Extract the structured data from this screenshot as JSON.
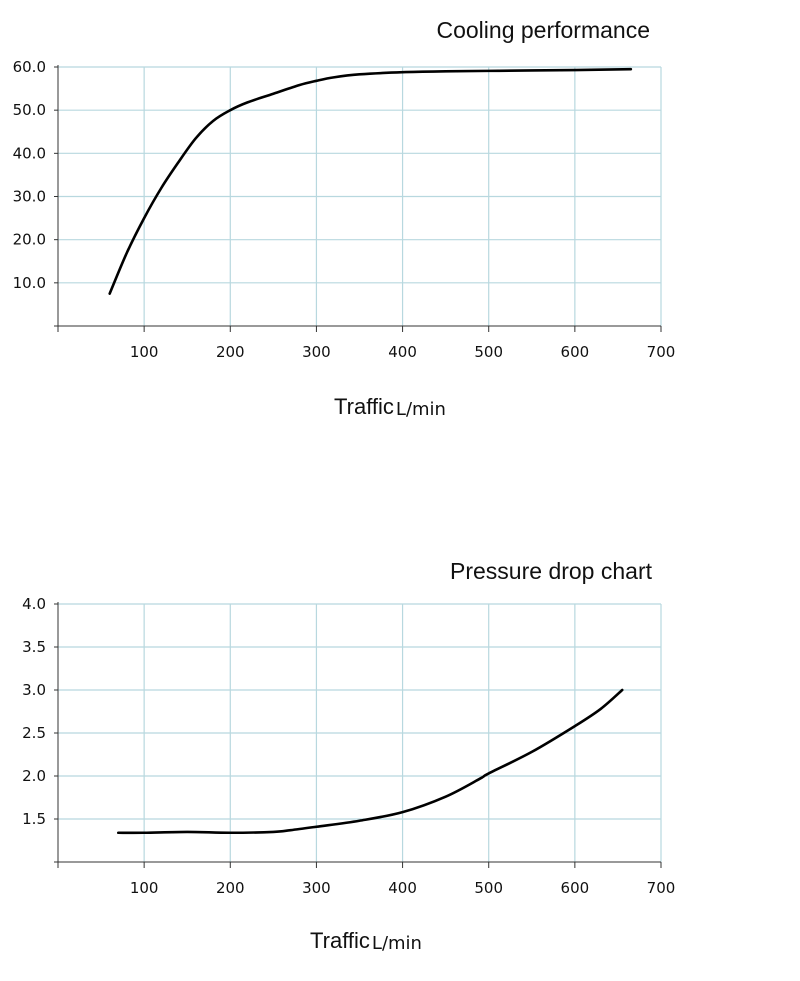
{
  "chart_data": [
    {
      "type": "line",
      "title": "Cooling performance",
      "xlabel": "Traffic",
      "xlabel_unit": "L/min",
      "ylabel": "",
      "xlim": [
        0,
        700
      ],
      "ylim": [
        0,
        60
      ],
      "x_ticks": [
        "100",
        "200",
        "300",
        "400",
        "500",
        "600",
        "700"
      ],
      "y_ticks": [
        "10.0",
        "20.0",
        "30.0",
        "40.0",
        "50.0",
        "60.0"
      ],
      "grid": true,
      "series": [
        {
          "x": [
            60,
            80,
            100,
            120,
            140,
            160,
            180,
            200,
            220,
            250,
            280,
            300,
            320,
            350,
            400,
            450,
            500,
            550,
            600,
            665
          ],
          "y": [
            7.5,
            17,
            25,
            32,
            38,
            43.5,
            47.5,
            50,
            51.8,
            53.8,
            55.8,
            56.8,
            57.6,
            58.3,
            58.8,
            59,
            59.1,
            59.2,
            59.3,
            59.5
          ]
        }
      ]
    },
    {
      "type": "line",
      "title": "Pressure drop chart",
      "xlabel": "Traffic",
      "xlabel_unit": "L/min",
      "ylabel": "",
      "xlim": [
        0,
        700
      ],
      "ylim": [
        1,
        4
      ],
      "x_ticks": [
        "100",
        "200",
        "300",
        "400",
        "500",
        "600",
        "700"
      ],
      "y_ticks": [
        "1.5",
        "2.0",
        "2.5",
        "3.0",
        "3.5",
        "4.0"
      ],
      "grid": true,
      "series": [
        {
          "x": [
            70,
            100,
            150,
            200,
            250,
            270,
            300,
            350,
            400,
            450,
            490,
            500,
            550,
            600,
            630,
            655
          ],
          "y": [
            1.34,
            1.34,
            1.35,
            1.34,
            1.35,
            1.37,
            1.41,
            1.48,
            1.58,
            1.76,
            1.97,
            2.03,
            2.28,
            2.58,
            2.78,
            3.0
          ]
        }
      ]
    }
  ]
}
